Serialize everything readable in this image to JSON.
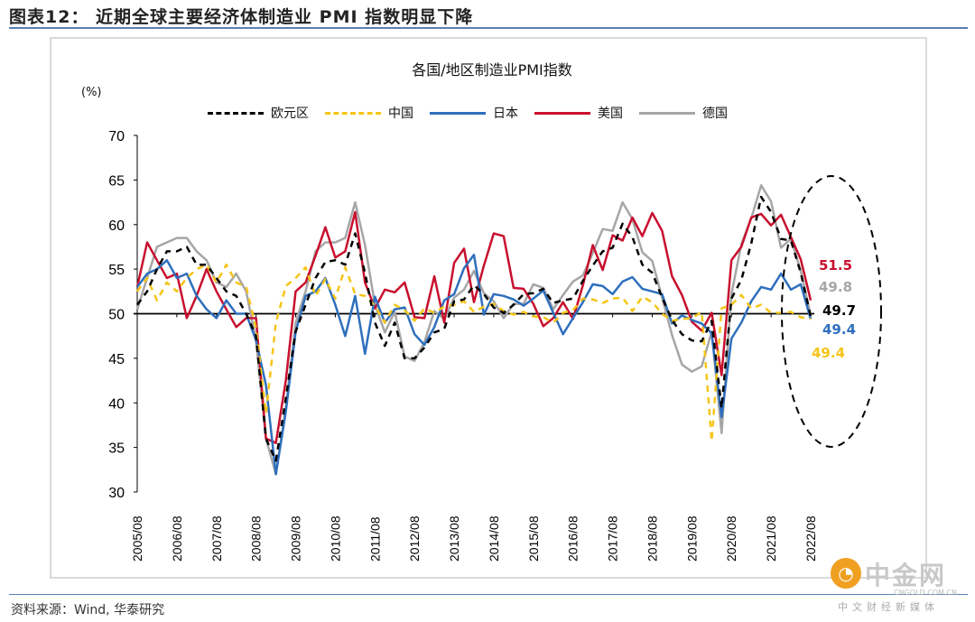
{
  "header": {
    "title": "图表12：  近期全球主要经济体制造业 PMI 指数明显下降"
  },
  "footer": {
    "source": "资料来源：Wind, 华泰研究"
  },
  "watermark": {
    "logo_glyph": "◔",
    "name": "中金网",
    "domain": "CNGOLD.COM.CN",
    "tagline": "中文财经新媒体"
  },
  "chart_data": {
    "type": "line",
    "title": "各国/地区制造业PMI指数",
    "ylabel": "(%)",
    "xlabel": "",
    "ylim": [
      30,
      70
    ],
    "yticks": [
      30,
      35,
      40,
      45,
      50,
      55,
      60,
      65,
      70
    ],
    "xtick_labels": [
      "2005/08",
      "2006/08",
      "2007/08",
      "2008/08",
      "2009/08",
      "2010/08",
      "2011/08",
      "2012/08",
      "2013/08",
      "2014/08",
      "2015/08",
      "2016/08",
      "2017/08",
      "2018/08",
      "2019/08",
      "2020/08",
      "2021/08",
      "2022/08"
    ],
    "reference_line": 50,
    "legend_position": "top",
    "x": [
      "2005/08",
      "2005/11",
      "2006/02",
      "2006/05",
      "2006/08",
      "2006/11",
      "2007/02",
      "2007/05",
      "2007/08",
      "2007/11",
      "2008/02",
      "2008/05",
      "2008/08",
      "2008/11",
      "2009/02",
      "2009/05",
      "2009/08",
      "2009/11",
      "2010/02",
      "2010/05",
      "2010/08",
      "2010/11",
      "2011/02",
      "2011/05",
      "2011/08",
      "2011/11",
      "2012/02",
      "2012/05",
      "2012/08",
      "2012/11",
      "2013/02",
      "2013/05",
      "2013/08",
      "2013/11",
      "2014/02",
      "2014/05",
      "2014/08",
      "2014/11",
      "2015/02",
      "2015/05",
      "2015/08",
      "2015/11",
      "2016/02",
      "2016/05",
      "2016/08",
      "2016/11",
      "2017/02",
      "2017/05",
      "2017/08",
      "2017/11",
      "2018/02",
      "2018/05",
      "2018/08",
      "2018/11",
      "2019/02",
      "2019/05",
      "2019/08",
      "2019/11",
      "2020/02",
      "2020/05",
      "2020/08",
      "2020/11",
      "2021/02",
      "2021/05",
      "2021/08",
      "2021/11",
      "2022/02",
      "2022/05",
      "2022/08"
    ],
    "series": [
      {
        "name": "欧元区",
        "color": "#000000",
        "dash": true,
        "end_label": "49.7",
        "values": [
          51,
          52.5,
          55,
          57,
          57,
          57.5,
          55.5,
          55.5,
          54,
          52.5,
          52,
          50,
          47.5,
          36,
          33.5,
          40.5,
          48,
          51,
          54,
          55.8,
          56,
          55.5,
          59,
          54.6,
          49,
          46.4,
          49,
          45,
          45,
          46.2,
          47.9,
          48.3,
          51.4,
          51.6,
          53.2,
          52.2,
          50.7,
          50.1,
          51,
          52.2,
          52.3,
          52.8,
          51.2,
          51.5,
          51.7,
          53.7,
          55.4,
          57,
          57.4,
          60.1,
          58.6,
          55.5,
          54.6,
          51.8,
          49.3,
          47.7,
          47,
          46.9,
          49.2,
          39.4,
          51.7,
          53.8,
          57.9,
          63.1,
          61.4,
          58.4,
          58.2,
          54.6,
          49.7
        ]
      },
      {
        "name": "中国",
        "color": "#f5c518",
        "dash": true,
        "end_label": "49.4",
        "values": [
          52.5,
          54,
          51.5,
          53.5,
          52.5,
          54,
          55,
          55.5,
          53.5,
          55.5,
          53.5,
          53,
          48.4,
          38.8,
          49,
          53.1,
          54,
          55.2,
          52,
          53.9,
          51.7,
          55.2,
          52.2,
          52,
          50.9,
          49,
          51,
          50.4,
          49.2,
          50.6,
          50.1,
          50.8,
          51,
          51.4,
          50.2,
          50.8,
          51.1,
          50.3,
          49.9,
          50.2,
          49.7,
          49.6,
          49,
          50.1,
          50.4,
          51.7,
          51.6,
          51.2,
          51.7,
          51.8,
          50.3,
          51.9,
          51.3,
          50,
          49.2,
          49.4,
          49.5,
          50.2,
          35.7,
          50.6,
          51,
          52.1,
          50.6,
          51,
          50.1,
          50.1,
          50.2,
          49.6,
          49.4
        ]
      },
      {
        "name": "日本",
        "color": "#2e6fbd",
        "dash": false,
        "end_label": "49.4",
        "values": [
          53,
          54.5,
          55,
          56,
          54,
          54.5,
          52,
          50.5,
          49.5,
          51.5,
          50,
          50,
          47,
          42,
          32,
          39,
          48,
          52,
          52.5,
          54,
          51,
          47.5,
          52,
          45.5,
          51.9,
          49,
          50.5,
          50.7,
          47.7,
          46.5,
          48.5,
          51.5,
          52.2,
          55.1,
          56.6,
          49.9,
          52.2,
          52,
          51.6,
          50.9,
          51.7,
          52.6,
          50.1,
          47.7,
          49.5,
          51.3,
          53.3,
          53.1,
          52.2,
          53.6,
          54.1,
          52.8,
          52.5,
          52.2,
          48.9,
          49.8,
          49.3,
          48.9,
          47.8,
          38.4,
          47.2,
          49,
          51.4,
          53,
          52.7,
          54.5,
          52.7,
          53.3,
          49.4
        ]
      },
      {
        "name": "美国",
        "color": "#c8102e",
        "dash": false,
        "end_label": "51.5",
        "values": [
          53,
          58,
          56,
          54,
          54.5,
          49.5,
          52,
          55,
          52.5,
          50.5,
          48.5,
          49.5,
          49.5,
          36,
          35.5,
          42.5,
          52.5,
          53.5,
          56.5,
          59.7,
          56.3,
          57,
          61.4,
          53.5,
          50.6,
          52.7,
          52.4,
          53.5,
          49.6,
          49.5,
          54.2,
          49,
          55.7,
          57.3,
          51.3,
          55.4,
          59,
          58.7,
          52.9,
          52.8,
          51.1,
          48.6,
          49.5,
          51.3,
          49.4,
          53.2,
          57.7,
          54.9,
          58.8,
          58.2,
          60.8,
          58.7,
          61.3,
          59.3,
          54.2,
          52.1,
          49.1,
          48.1,
          50.1,
          43.1,
          56,
          57.5,
          60.8,
          61.2,
          59.9,
          61.1,
          58.6,
          56.1,
          51.5
        ]
      },
      {
        "name": "德国",
        "color": "#a6a6a6",
        "dash": false,
        "end_label": "49.8",
        "values": [
          50.5,
          54,
          57.5,
          58,
          58.5,
          58.5,
          57,
          56,
          53.5,
          53,
          54.5,
          52.5,
          47,
          36,
          32,
          39.5,
          49,
          52.5,
          57,
          58,
          58,
          58.5,
          62.5,
          57.7,
          51,
          47.9,
          50.2,
          45.2,
          44.7,
          46.8,
          50.3,
          49.4,
          51.8,
          52.7,
          54.8,
          52.3,
          51.4,
          49.5,
          51.1,
          51.1,
          53.3,
          52.9,
          50.5,
          52.1,
          53.6,
          54.3,
          56.8,
          59.5,
          59.3,
          62.5,
          60.6,
          56.9,
          55.9,
          51.8,
          47.6,
          44.3,
          43.5,
          44.1,
          48,
          36.6,
          52.2,
          57.8,
          60.7,
          64.4,
          62.6,
          57.4,
          58.4,
          54.8,
          49.8
        ]
      }
    ]
  }
}
